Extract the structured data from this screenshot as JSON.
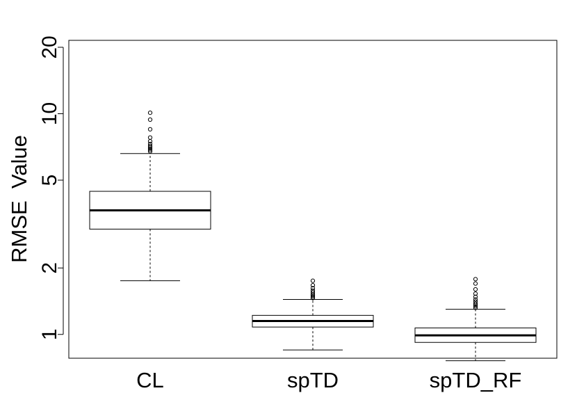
{
  "chart_data": {
    "type": "boxplot",
    "title": "",
    "xlabel": "",
    "ylabel": "RMSE  Value",
    "yscale": "log",
    "ylim": [
      0.78,
      21.5
    ],
    "yticks": [
      1,
      2,
      5,
      10,
      20
    ],
    "ytick_labels": [
      "1",
      "2",
      "5",
      "10",
      "20"
    ],
    "grid": false,
    "categories": [
      "CL",
      "spTD",
      "spTD_RF"
    ],
    "boxes": [
      {
        "name": "CL",
        "whisker_low": 1.75,
        "q1": 3.0,
        "median": 3.65,
        "q3": 4.45,
        "whisker_high": 6.6,
        "outliers": [
          6.75,
          6.85,
          6.95,
          7.05,
          7.15,
          7.3,
          7.5,
          7.8,
          8.5,
          9.4,
          10.1
        ]
      },
      {
        "name": "spTD",
        "whisker_low": 0.85,
        "q1": 1.08,
        "median": 1.15,
        "q3": 1.22,
        "whisker_high": 1.44,
        "outliers": [
          1.46,
          1.48,
          1.5,
          1.52,
          1.55,
          1.58,
          1.62,
          1.67,
          1.75
        ]
      },
      {
        "name": "spTD_RF",
        "whisker_low": 0.76,
        "q1": 0.92,
        "median": 0.99,
        "q3": 1.07,
        "whisker_high": 1.3,
        "outliers": [
          1.32,
          1.34,
          1.36,
          1.38,
          1.41,
          1.44,
          1.48,
          1.53,
          1.6,
          1.7,
          1.78
        ]
      }
    ]
  }
}
